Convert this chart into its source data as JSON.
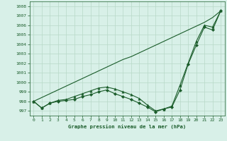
{
  "title": "Graphe pression niveau de la mer (hPa)",
  "bg_color": "#d8f0e8",
  "grid_color": "#b8d8c8",
  "line_color": "#1a5c2a",
  "xlim": [
    -0.5,
    23.5
  ],
  "ylim": [
    996.5,
    1008.5
  ],
  "yticks": [
    997,
    998,
    999,
    1000,
    1001,
    1002,
    1003,
    1004,
    1005,
    1006,
    1007,
    1008
  ],
  "xticks": [
    0,
    1,
    2,
    3,
    4,
    5,
    6,
    7,
    8,
    9,
    10,
    11,
    12,
    13,
    14,
    15,
    16,
    17,
    18,
    19,
    20,
    21,
    22,
    23
  ],
  "s_diagonal": [
    998.0,
    998.4,
    998.8,
    999.2,
    999.6,
    1000.0,
    1000.4,
    1000.8,
    1001.2,
    1001.6,
    1002.0,
    1002.4,
    1002.7,
    1003.1,
    1003.5,
    1003.9,
    1004.3,
    1004.7,
    1005.1,
    1005.5,
    1005.9,
    1006.3,
    1006.8,
    1007.5
  ],
  "s_diamond": [
    998.0,
    997.3,
    997.8,
    998.0,
    998.1,
    998.2,
    998.5,
    998.7,
    999.0,
    999.2,
    998.8,
    998.5,
    998.2,
    997.8,
    997.4,
    996.9,
    997.2,
    997.4,
    999.2,
    1001.9,
    1003.9,
    1005.8,
    1005.5,
    1007.5
  ],
  "s_triangle": [
    998.0,
    997.3,
    997.8,
    998.1,
    998.2,
    998.5,
    998.8,
    999.1,
    999.4,
    999.5,
    999.3,
    999.0,
    998.7,
    998.3,
    997.6,
    997.0,
    997.2,
    997.5,
    999.7,
    1002.0,
    1004.3,
    1006.0,
    1005.8,
    1007.5
  ]
}
